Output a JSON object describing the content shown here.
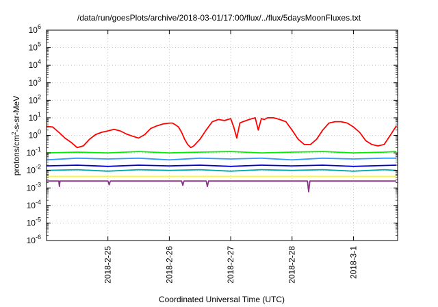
{
  "chart_data": {
    "type": "line",
    "title": "/data/run/goesPlots/archive/2018-03-01/17:00/flux/../flux/5daysMoonFluxes.txt",
    "xlabel": "Coordinated Universal Time (UTC)",
    "ylabel": {
      "prefix": "protons/cm",
      "sup": "2",
      "suffix": "-s-sr-MeV"
    },
    "yscale": "log",
    "ylim": [
      1e-06,
      1000000.0
    ],
    "xlim": [
      0,
      5.72
    ],
    "y_ticks": [
      {
        "value": 1e-06,
        "base": "10",
        "exp": "-6"
      },
      {
        "value": 1e-05,
        "base": "10",
        "exp": "-5"
      },
      {
        "value": 0.0001,
        "base": "10",
        "exp": "-4"
      },
      {
        "value": 0.001,
        "base": "10",
        "exp": "-3"
      },
      {
        "value": 0.01,
        "base": "10",
        "exp": "-2"
      },
      {
        "value": 0.1,
        "base": "10",
        "exp": "-1"
      },
      {
        "value": 1,
        "base": "10",
        "exp": "0"
      },
      {
        "value": 10,
        "base": "10",
        "exp": "1"
      },
      {
        "value": 100,
        "base": "10",
        "exp": "2"
      },
      {
        "value": 1000,
        "base": "10",
        "exp": "3"
      },
      {
        "value": 10000,
        "base": "10",
        "exp": "4"
      },
      {
        "value": 100000,
        "base": "10",
        "exp": "5"
      },
      {
        "value": 1000000,
        "base": "10",
        "exp": "6"
      }
    ],
    "x_ticks": [
      {
        "value": 1,
        "label": "2018-2-25"
      },
      {
        "value": 2,
        "label": "2018-2-26"
      },
      {
        "value": 3,
        "label": "2018-2-27"
      },
      {
        "value": 4,
        "label": "2018-2-28"
      },
      {
        "value": 5,
        "label": "2018-3-1"
      }
    ],
    "grid": true,
    "series": [
      {
        "color": "#ff0000",
        "x": [
          0,
          0.1,
          0.2,
          0.3,
          0.4,
          0.5,
          0.6,
          0.7,
          0.8,
          0.9,
          1.0,
          1.1,
          1.2,
          1.3,
          1.4,
          1.5,
          1.6,
          1.7,
          1.8,
          1.9,
          2.0,
          2.05,
          2.1,
          2.15,
          2.2,
          2.25,
          2.3,
          2.35,
          2.4,
          2.5,
          2.6,
          2.7,
          2.8,
          2.9,
          3.0,
          3.05,
          3.1,
          3.15,
          3.2,
          3.3,
          3.4,
          3.45,
          3.5,
          3.55,
          3.6,
          3.7,
          3.8,
          3.9,
          4.0,
          4.1,
          4.2,
          4.3,
          4.4,
          4.5,
          4.6,
          4.7,
          4.8,
          4.9,
          5.0,
          5.1,
          5.2,
          5.3,
          5.4,
          5.5,
          5.6,
          5.7
        ],
        "values": [
          3.2,
          3,
          1.5,
          0.7,
          0.4,
          0.2,
          0.25,
          0.6,
          1.1,
          1.5,
          1.8,
          2.2,
          1.8,
          1.2,
          0.9,
          0.7,
          1.1,
          2.5,
          3.5,
          4.5,
          5,
          5,
          4,
          3,
          1.5,
          0.6,
          0.3,
          0.2,
          0.25,
          0.6,
          2,
          6,
          8,
          7,
          9,
          3,
          0.7,
          5,
          6,
          8,
          10,
          2,
          9,
          8,
          10,
          10,
          8,
          6,
          2,
          0.6,
          0.3,
          0.3,
          0.6,
          2,
          5,
          6,
          6,
          5,
          3,
          1.5,
          0.5,
          0.3,
          0.25,
          0.3,
          1,
          3.5
        ]
      },
      {
        "color": "#00ee00",
        "x": [
          0,
          0.5,
          1.0,
          1.5,
          2.0,
          2.5,
          3.0,
          3.5,
          4.0,
          4.5,
          5.0,
          5.5,
          5.7
        ],
        "values": [
          0.1,
          0.11,
          0.1,
          0.12,
          0.1,
          0.11,
          0.12,
          0.1,
          0.11,
          0.12,
          0.1,
          0.11,
          0.12
        ]
      },
      {
        "color": "#3399ff",
        "x": [
          0,
          0.5,
          1.0,
          1.5,
          2.0,
          2.5,
          3.0,
          3.5,
          4.0,
          4.5,
          5.0,
          5.5,
          5.7
        ],
        "values": [
          0.04,
          0.05,
          0.045,
          0.05,
          0.04,
          0.05,
          0.045,
          0.05,
          0.04,
          0.05,
          0.045,
          0.05,
          0.05
        ]
      },
      {
        "color": "#0000cc",
        "x": [
          0,
          0.5,
          1.0,
          1.5,
          2.0,
          2.5,
          3.0,
          3.5,
          4.0,
          4.5,
          5.0,
          5.5,
          5.7
        ],
        "values": [
          0.018,
          0.02,
          0.017,
          0.02,
          0.018,
          0.02,
          0.017,
          0.02,
          0.018,
          0.02,
          0.017,
          0.019,
          0.02
        ]
      },
      {
        "color": "#00aaaa",
        "x": [
          0,
          0.5,
          1.0,
          1.5,
          2.0,
          2.5,
          3.0,
          3.5,
          4.0,
          4.5,
          5.0,
          5.5,
          5.7
        ],
        "values": [
          0.01,
          0.011,
          0.009,
          0.011,
          0.01,
          0.011,
          0.009,
          0.011,
          0.01,
          0.011,
          0.009,
          0.011,
          0.01
        ]
      },
      {
        "color": "#ffff00",
        "x": [
          0,
          1.0,
          2.0,
          3.0,
          4.0,
          5.0,
          5.7
        ],
        "values": [
          0.0045,
          0.0045,
          0.0045,
          0.0045,
          0.0045,
          0.0045,
          0.0045
        ]
      },
      {
        "color": "#883388",
        "x": [
          0,
          0.2,
          0.21,
          0.22,
          0.5,
          1.0,
          1.02,
          1.04,
          2.0,
          2.2,
          2.22,
          2.24,
          2.6,
          2.62,
          2.64,
          3.0,
          3.5,
          4.0,
          4.25,
          4.27,
          4.29,
          4.5,
          5.0,
          5.5,
          5.7
        ],
        "values": [
          0.0025,
          0.0025,
          0.0012,
          0.0025,
          0.0025,
          0.0025,
          0.0015,
          0.0025,
          0.0025,
          0.0025,
          0.0014,
          0.0025,
          0.0025,
          0.0012,
          0.0025,
          0.0025,
          0.0025,
          0.0025,
          0.0025,
          0.0006,
          0.0025,
          0.0025,
          0.0025,
          0.0025,
          0.0025
        ]
      }
    ]
  }
}
